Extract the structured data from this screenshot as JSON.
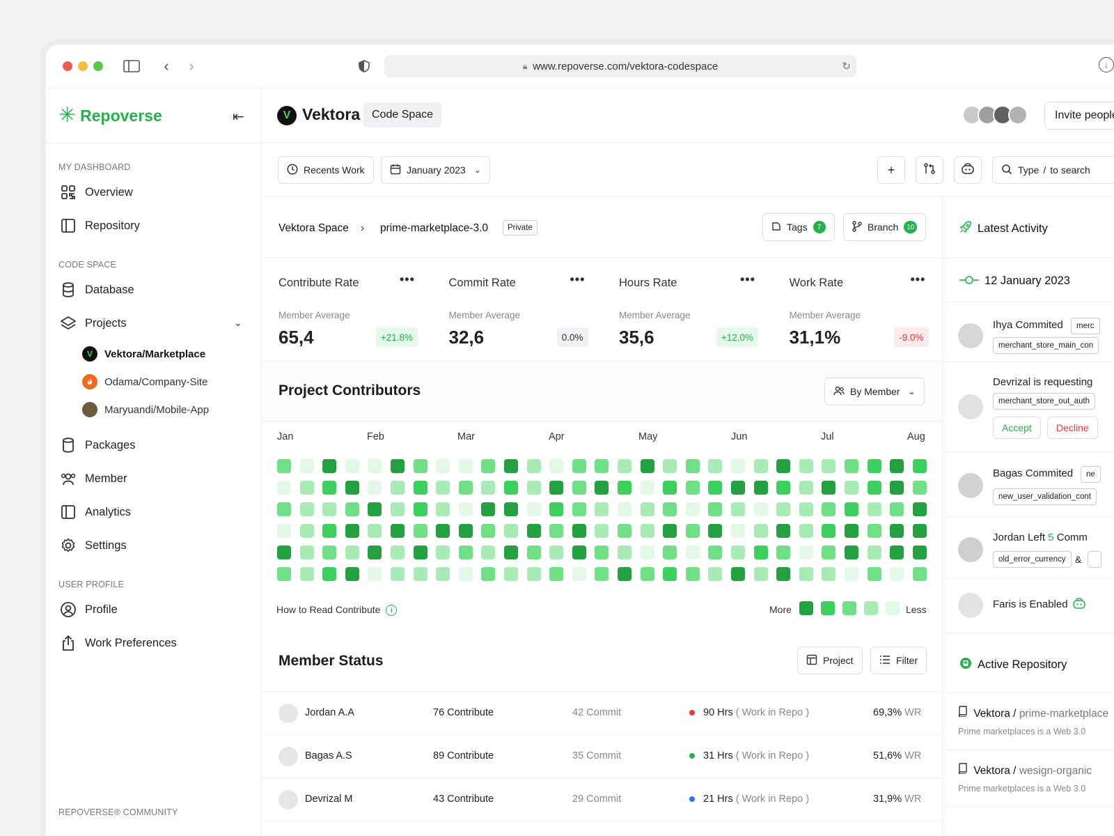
{
  "browser": {
    "url": "www.repoverse.com/vektora-codespace"
  },
  "sidebar": {
    "brand": "Repoverse",
    "sections": {
      "dashboard": "MY DASHBOARD",
      "code_space": "CODE SPACE",
      "user_profile": "USER PROFILE",
      "community": "REPOVERSE® COMMUNITY"
    },
    "items": {
      "overview": "Overview",
      "repository": "Repository",
      "database": "Database",
      "projects": "Projects",
      "packages": "Packages",
      "member": "Member",
      "analytics": "Analytics",
      "settings": "Settings",
      "profile": "Profile",
      "work_preferences": "Work Preferences"
    },
    "projects": [
      {
        "label": "Vektora/Marketplace",
        "initial": "V",
        "color": "#111111"
      },
      {
        "label": "Odama/Company-Site",
        "initial": "o",
        "color": "#f06a1d"
      },
      {
        "label": "Maryuandi/Mobile-App",
        "initial": "",
        "color": "#6b5b3a"
      }
    ]
  },
  "header": {
    "workspace": "Vektora",
    "workspace_initial": "V",
    "tag": "Code Space",
    "invite": "Invite people"
  },
  "toolbar": {
    "recents": "Recents Work",
    "date": "January 2023",
    "search_prefix": "Type",
    "search_key": "/",
    "search_suffix": "to search"
  },
  "breadcrumb": {
    "space": "Vektora Space",
    "repo": "prime-marketplace-3.0",
    "visibility": "Private",
    "tags_label": "Tags",
    "tags_count": "7",
    "branch_label": "Branch",
    "branch_count": "10"
  },
  "stats": [
    {
      "title": "Contribute Rate",
      "sub": "Member Average",
      "value": "65,4",
      "change": "+21.8%",
      "tone": "pos"
    },
    {
      "title": "Commit Rate",
      "sub": "Member Average",
      "value": "32,6",
      "change": "0.0%",
      "tone": "neutral"
    },
    {
      "title": "Hours Rate",
      "sub": "Member Average",
      "value": "35,6",
      "change": "+12.0%",
      "tone": "pos"
    },
    {
      "title": "Work Rate",
      "sub": "Member Average",
      "value": "31,1%",
      "change": "-9.0%",
      "tone": "neg"
    }
  ],
  "contributors": {
    "title": "Project Contributors",
    "filter": "By Member",
    "months": [
      "Jan",
      "Feb",
      "Mar",
      "Apr",
      "May",
      "Jun",
      "Jul",
      "Aug"
    ],
    "how_to": "How to Read Contribute",
    "more": "More",
    "less": "Less",
    "levels": [
      "#23a140",
      "#3cd05e",
      "#6fe085",
      "#a8ebb5",
      "#e3f8e7"
    ],
    "grid": [
      [
        2,
        4,
        0,
        4,
        4,
        0,
        2,
        4,
        4,
        2,
        0,
        3,
        4,
        2,
        2,
        3,
        0,
        3,
        2,
        3,
        4,
        3,
        0,
        3,
        3,
        2,
        1,
        0,
        1
      ],
      [
        4,
        3,
        1,
        0,
        4,
        3,
        1,
        3,
        2,
        3,
        1,
        3,
        0,
        2,
        0,
        1,
        4,
        1,
        2,
        1,
        0,
        0,
        1,
        3,
        0,
        3,
        1,
        0,
        2
      ],
      [
        2,
        3,
        3,
        2,
        0,
        3,
        1,
        3,
        4,
        0,
        0,
        4,
        1,
        2,
        3,
        4,
        3,
        2,
        4,
        2,
        3,
        4,
        3,
        3,
        2,
        1,
        3,
        2,
        0
      ],
      [
        4,
        3,
        1,
        0,
        3,
        0,
        2,
        0,
        0,
        2,
        3,
        0,
        2,
        0,
        3,
        2,
        3,
        0,
        2,
        0,
        4,
        3,
        0,
        3,
        1,
        0,
        2,
        0,
        0
      ],
      [
        0,
        3,
        2,
        3,
        0,
        3,
        0,
        3,
        2,
        3,
        0,
        2,
        3,
        0,
        2,
        3,
        4,
        2,
        4,
        2,
        3,
        1,
        2,
        4,
        2,
        0,
        3,
        0,
        0
      ],
      [
        2,
        3,
        1,
        0,
        4,
        3,
        3,
        3,
        4,
        2,
        3,
        3,
        2,
        4,
        2,
        0,
        2,
        1,
        2,
        3,
        0,
        3,
        0,
        3,
        3,
        4,
        2,
        4,
        2
      ]
    ]
  },
  "member_status": {
    "title": "Member Status",
    "project_btn": "Project",
    "filter_btn": "Filter",
    "rows": [
      {
        "name": "Jordan A.A",
        "contribute": "76 Contribute",
        "commit": "42 Commit",
        "hours": "90 Hrs",
        "hours_note": "( Work in Repo )",
        "dot": "#e5383b",
        "wr": "69,3%",
        "wr_suffix": "WR"
      },
      {
        "name": "Bagas A.S",
        "contribute": "89 Contribute",
        "commit": "35 Commit",
        "hours": "31 Hrs",
        "hours_note": "( Work in Repo )",
        "dot": "#23b34a",
        "wr": "51,6%",
        "wr_suffix": "WR"
      },
      {
        "name": "Devrizal M",
        "contribute": "43 Contribute",
        "commit": "29 Commit",
        "hours": "21 Hrs",
        "hours_note": "( Work in Repo )",
        "dot": "#1f78f0",
        "wr": "31,9%",
        "wr_suffix": "WR"
      }
    ]
  },
  "activity": {
    "title": "Latest Activity",
    "date": "12 January 2023",
    "items": [
      {
        "who": "Ihya Commited",
        "chip": "merchant_store_main_con",
        "chip2": "merc"
      },
      {
        "who": "Devrizal is requesting",
        "chip": "merchant_store_out_auth",
        "accept": "Accept",
        "decline": "Decline"
      },
      {
        "who": "Bagas Commited",
        "chip": "new_user_validation_cont",
        "chip2": "ne"
      },
      {
        "who_prefix": "Jordan Left",
        "who_count": "5",
        "who_suffix": "Comm",
        "chip": "old_error_currency",
        "amp": "&"
      },
      {
        "who": "Faris is Enabled"
      }
    ]
  },
  "active_repo": {
    "title": "Active Repository",
    "items": [
      {
        "org": "Vektora /",
        "repo": "prime-marketplace",
        "desc": "Prime marketplaces is a Web 3.0"
      },
      {
        "org": "Vektora /",
        "repo": "wesign-organic",
        "desc": "Prime marketplaces is a Web 3.0"
      }
    ]
  }
}
